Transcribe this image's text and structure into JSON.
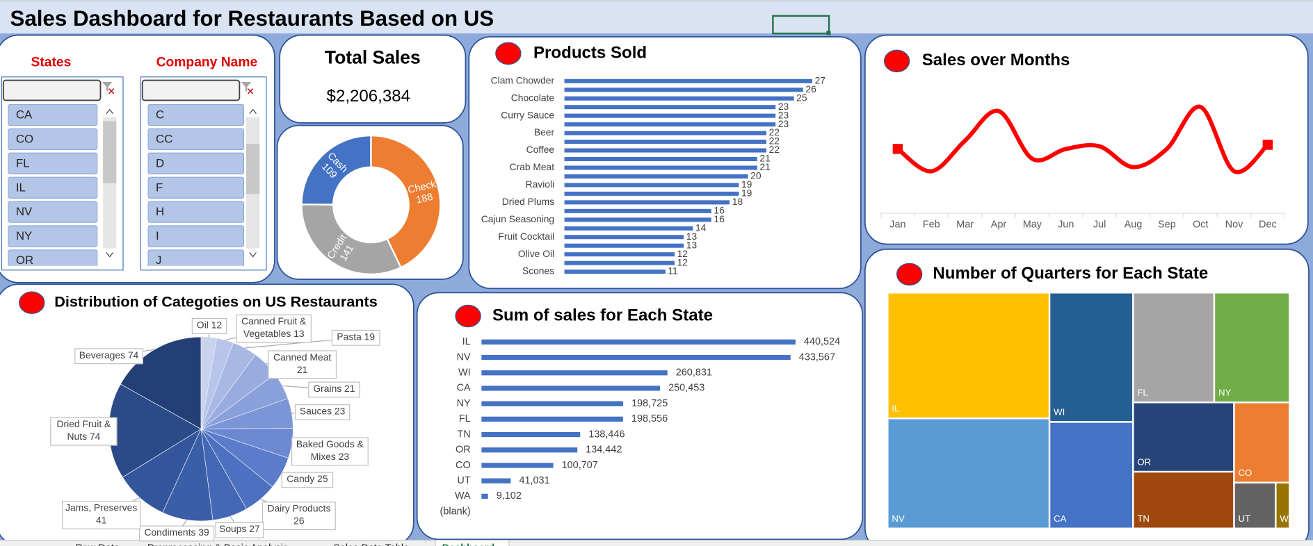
{
  "header": {
    "title": "Sales Dashboard for Restaurants Based on US"
  },
  "slicers": [
    {
      "title": "States",
      "items": [
        "CA",
        "CO",
        "FL",
        "IL",
        "NV",
        "NY",
        "OR"
      ]
    },
    {
      "title": "Company Name",
      "items": [
        "C",
        "CC",
        "D",
        "F",
        "H",
        "I",
        "J"
      ]
    }
  ],
  "kpi": {
    "title": "Total Sales",
    "value": "$2,206,384"
  },
  "chart_data": [
    {
      "type": "donut",
      "categories": [
        "Check",
        "Credit",
        "Cash"
      ],
      "values": [
        188,
        141,
        109
      ],
      "colors": [
        "#ed7d31",
        "#a5a5a5",
        "#4472c4"
      ]
    },
    {
      "type": "bar",
      "orientation": "horizontal",
      "title": "Products Sold",
      "categories": [
        "Clam Chowder",
        null,
        "Chocolate",
        null,
        "Curry Sauce",
        null,
        "Beer",
        null,
        "Coffee",
        null,
        "Crab Meat",
        null,
        "Ravioli",
        null,
        "Dried Plums",
        null,
        "Cajun Seasoning",
        null,
        "Fruit Cocktail",
        null,
        "Olive Oil",
        null,
        "Scones"
      ],
      "values": [
        27,
        26,
        25,
        23,
        23,
        23,
        22,
        22,
        22,
        21,
        21,
        20,
        19,
        19,
        18,
        16,
        16,
        14,
        13,
        13,
        12,
        12,
        11
      ],
      "color": "#4472c4"
    },
    {
      "type": "line",
      "title": "Sales over Months",
      "categories": [
        "Jan",
        "Feb",
        "Mar",
        "Apr",
        "May",
        "Jun",
        "Jul",
        "Aug",
        "Sep",
        "Oct",
        "Nov",
        "Dec"
      ],
      "values": [
        124000,
        81000,
        140000,
        197000,
        105000,
        124000,
        129000,
        89000,
        124000,
        205000,
        81000,
        132000
      ],
      "ylim": [
        0,
        250000
      ],
      "color": "#ff0000"
    },
    {
      "type": "pie",
      "title": "Distribution of Categoties on US Restaurants",
      "categories": [
        "Oil",
        "Canned Fruit & Vegetables",
        "Pasta",
        "Canned Meat",
        "Grains",
        "Sauces",
        "Baked Goods & Mixes",
        "Candy",
        "Dairy Products",
        "Soups",
        "Condiments",
        "Jams, Preserves",
        "Dried Fruit & Nuts",
        "Beverages"
      ],
      "values": [
        12,
        13,
        19,
        21,
        21,
        23,
        23,
        25,
        26,
        27,
        39,
        41,
        74,
        74
      ],
      "colors": [
        "#c9d3ee",
        "#b7c5ea",
        "#a8b8e4",
        "#98acdf",
        "#8aa0da",
        "#7c95d6",
        "#6b88d1",
        "#5a7ccb",
        "#4e70c0",
        "#4468b5",
        "#3b5ea8",
        "#33559b",
        "#2a4a88",
        "#233f76"
      ]
    },
    {
      "type": "bar",
      "orientation": "horizontal",
      "title": "Sum of sales for Each State",
      "categories": [
        "IL",
        "NV",
        "WI",
        "CA",
        "NY",
        "FL",
        "TN",
        "OR",
        "CO",
        "UT",
        "WA",
        "(blank)"
      ],
      "values": [
        440524,
        433567,
        260831,
        250453,
        198725,
        198556,
        138446,
        134442,
        100707,
        41031,
        9102,
        null
      ],
      "value_labels": [
        "440,524",
        "433,567",
        "260,831",
        "250,453",
        "198,725",
        "198,556",
        "138,446",
        "134,442",
        "100,707",
        "41,031",
        "9,102",
        null
      ],
      "color": "#4472c4"
    },
    {
      "type": "treemap",
      "title": "Number of Quarters for Each State",
      "categories": [
        "IL",
        "NV",
        "WI",
        "CA",
        "FL",
        "NY",
        "OR",
        "TN",
        "CO",
        "UT",
        "WA"
      ],
      "values": [
        32,
        28,
        17,
        14,
        14,
        13,
        11,
        9,
        7,
        3,
        1
      ],
      "colors": [
        "#ffc000",
        "#5b9bd5",
        "#255e91",
        "#4472c4",
        "#a5a5a5",
        "#70ad47",
        "#264478",
        "#9e480e",
        "#ed7d31",
        "#636363",
        "#997300"
      ]
    }
  ],
  "sheet_tabs": [
    "Raw Data",
    "Preprocessing & Basic Analysis",
    "Sales Data Table",
    "Dashboard"
  ]
}
